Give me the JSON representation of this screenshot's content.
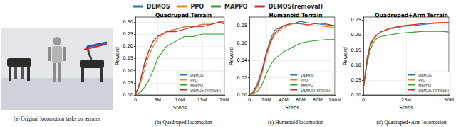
{
  "panel_a": {
    "caption": "(a) Original locomotion tasks on terrains"
  },
  "chart_data": [
    {
      "type": "line",
      "title": "Quadruped Terrain",
      "caption": "(b) Quadruped locomotion",
      "x_label": "Steps",
      "y_label": "Reward",
      "grid": true,
      "legend": "lower right",
      "x": [
        0,
        1000000,
        2000000,
        3000000,
        4000000,
        5000000,
        7000000,
        9000000,
        11000000,
        13000000,
        15000000,
        17000000,
        19000000,
        20000000
      ],
      "series": [
        {
          "name": "DEMOS",
          "color": "#1f77b4",
          "values": [
            0.0,
            0.05,
            0.12,
            0.18,
            0.22,
            0.24,
            0.26,
            0.27,
            0.28,
            0.28,
            0.29,
            0.29,
            0.3,
            0.3
          ]
        },
        {
          "name": "PPO",
          "color": "#ff7f0e",
          "values": [
            0.0,
            0.04,
            0.1,
            0.16,
            0.2,
            0.23,
            0.26,
            0.27,
            0.28,
            0.28,
            0.29,
            0.29,
            0.3,
            0.3
          ]
        },
        {
          "name": "MAPPO",
          "color": "#2ca02c",
          "values": [
            0.0,
            0.01,
            0.03,
            0.06,
            0.1,
            0.15,
            0.2,
            0.22,
            0.24,
            0.24,
            0.25,
            0.25,
            0.25,
            0.25
          ]
        },
        {
          "name": "DEMOS(removal)",
          "color": "#d62728",
          "values": [
            0.0,
            0.05,
            0.13,
            0.18,
            0.22,
            0.24,
            0.26,
            0.26,
            0.27,
            0.28,
            0.28,
            0.29,
            0.3,
            0.29
          ]
        }
      ],
      "xlim": [
        0,
        20000000
      ],
      "xticks": [
        0,
        {
          "value": 5000000,
          "label": "5M"
        },
        {
          "value": 10000000,
          "label": "10M"
        },
        {
          "value": 15000000,
          "label": "15M"
        },
        {
          "value": 20000000,
          "label": "20M"
        }
      ],
      "ylim": [
        0,
        0.32
      ],
      "yticks": [
        {
          "value": 0,
          "label": "0.00"
        },
        {
          "value": 0.05,
          "label": "0.05"
        },
        {
          "value": 0.1,
          "label": "0.10"
        },
        {
          "value": 0.15,
          "label": "0.15"
        },
        {
          "value": 0.2,
          "label": "0.20"
        },
        {
          "value": 0.25,
          "label": "0.25"
        },
        {
          "value": 0.3,
          "label": "0.30"
        }
      ]
    },
    {
      "type": "line",
      "title": "Humanoid Terrain",
      "caption": "(c) Humanoid locomotion",
      "x_label": "Steps",
      "y_label": "Reward",
      "grid": true,
      "legend": "lower right",
      "x": [
        0,
        5000000,
        10000000,
        15000000,
        20000000,
        25000000,
        30000000,
        40000000,
        50000000,
        60000000,
        70000000,
        80000000,
        90000000,
        100000000
      ],
      "series": [
        {
          "name": "DEMOS",
          "color": "#1f77b4",
          "values": [
            0.0,
            0.005,
            0.015,
            0.03,
            0.05,
            0.065,
            0.075,
            0.08,
            0.082,
            0.085,
            0.083,
            0.082,
            0.081,
            0.08
          ]
        },
        {
          "name": "PPO",
          "color": "#ff7f0e",
          "values": [
            0.0,
            0.003,
            0.01,
            0.025,
            0.045,
            0.06,
            0.07,
            0.078,
            0.082,
            0.083,
            0.08,
            0.08,
            0.079,
            0.078
          ]
        },
        {
          "name": "MAPPO",
          "color": "#2ca02c",
          "values": [
            0.0,
            0.002,
            0.005,
            0.012,
            0.025,
            0.035,
            0.042,
            0.05,
            0.055,
            0.06,
            0.062,
            0.063,
            0.064,
            0.064
          ]
        },
        {
          "name": "DEMOS(removal)",
          "color": "#d62728",
          "values": [
            0.0,
            0.004,
            0.012,
            0.028,
            0.048,
            0.062,
            0.072,
            0.08,
            0.083,
            0.082,
            0.081,
            0.083,
            0.082,
            0.08
          ]
        }
      ],
      "xlim": [
        0,
        100000000
      ],
      "xticks": [
        0,
        {
          "value": 20000000,
          "label": "20M"
        },
        {
          "value": 40000000,
          "label": "40M"
        },
        {
          "value": 60000000,
          "label": "60M"
        },
        {
          "value": 80000000,
          "label": "80M"
        },
        {
          "value": 100000000,
          "label": "100M"
        }
      ],
      "ylim": [
        0,
        0.09
      ],
      "yticks": [
        {
          "value": 0,
          "label": "0.00"
        },
        {
          "value": 0.02,
          "label": "0.02"
        },
        {
          "value": 0.04,
          "label": "0.04"
        },
        {
          "value": 0.06,
          "label": "0.06"
        },
        {
          "value": 0.08,
          "label": "0.08"
        }
      ]
    },
    {
      "type": "line",
      "title": "Quadruped+Arm Terrain",
      "caption": "(d) Quadruped+Arm locomotion",
      "x_label": "Steps",
      "y_label": "Reward",
      "grid": true,
      "legend": "lower right",
      "x": [
        0,
        2000000,
        4000000,
        6000000,
        8000000,
        10000000,
        15000000,
        20000000,
        25000000,
        30000000,
        35000000,
        40000000,
        45000000,
        50000000
      ],
      "series": [
        {
          "name": "DEMOS",
          "color": "#1f77b4",
          "values": [
            0.02,
            0.12,
            0.17,
            0.19,
            0.2,
            0.21,
            0.22,
            0.225,
            0.23,
            0.232,
            0.235,
            0.238,
            0.24,
            0.24
          ]
        },
        {
          "name": "PPO",
          "color": "#ff7f0e",
          "values": [
            0.02,
            0.11,
            0.16,
            0.185,
            0.2,
            0.21,
            0.22,
            0.228,
            0.232,
            0.235,
            0.238,
            0.24,
            0.242,
            0.24
          ]
        },
        {
          "name": "MAPPO",
          "color": "#2ca02c",
          "values": [
            0.02,
            0.1,
            0.15,
            0.175,
            0.19,
            0.195,
            0.2,
            0.205,
            0.208,
            0.21,
            0.212,
            0.212,
            0.213,
            0.21
          ]
        },
        {
          "name": "DEMOS(removal)",
          "color": "#d62728",
          "values": [
            0.02,
            0.11,
            0.165,
            0.19,
            0.2,
            0.21,
            0.222,
            0.228,
            0.232,
            0.235,
            0.238,
            0.24,
            0.241,
            0.242
          ]
        }
      ],
      "xlim": [
        0,
        50000000
      ],
      "xticks": [
        0,
        {
          "value": 25000000,
          "label": "25M"
        },
        {
          "value": 50000000,
          "label": "50M"
        }
      ],
      "ylim": [
        0,
        0.26
      ],
      "yticks": [
        {
          "value": 0,
          "label": "0.00"
        },
        {
          "value": 0.05,
          "label": "0.05"
        },
        {
          "value": 0.1,
          "label": "0.10"
        },
        {
          "value": 0.15,
          "label": "0.15"
        },
        {
          "value": 0.2,
          "label": "0.20"
        },
        {
          "value": 0.25,
          "label": "0.25"
        }
      ]
    }
  ]
}
